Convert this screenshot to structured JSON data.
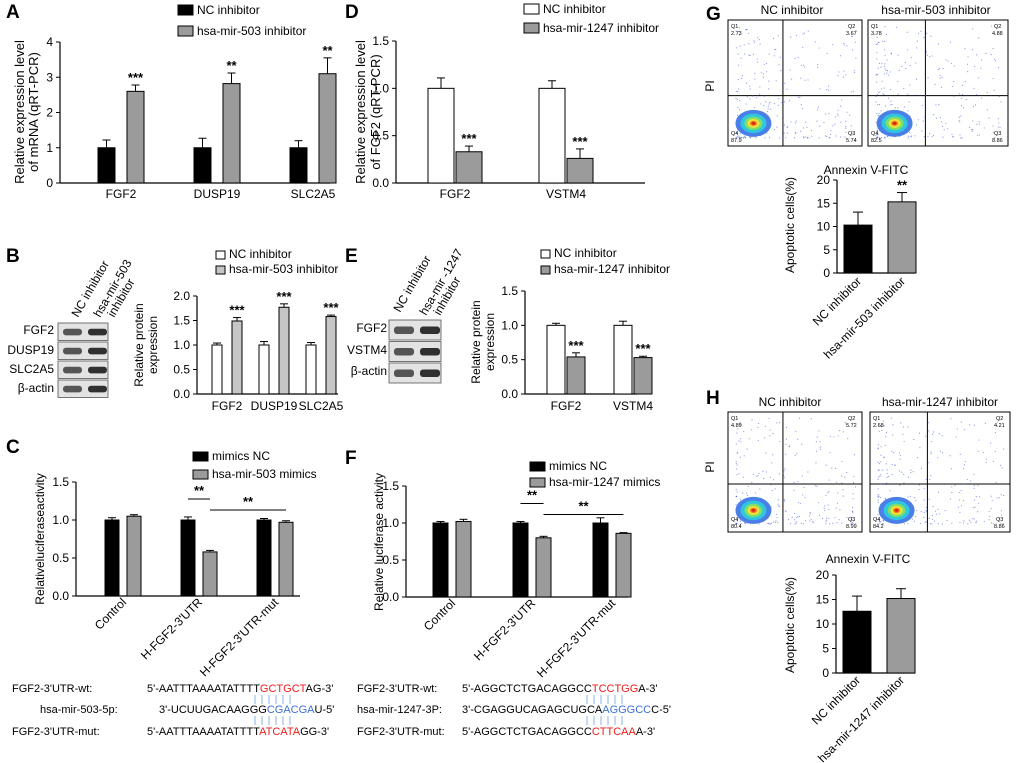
{
  "panel_letters": {
    "A": "A",
    "B": "B",
    "C": "C",
    "D": "D",
    "E": "E",
    "F": "F",
    "G": "G",
    "H": "H"
  },
  "colors": {
    "nc": "#000000",
    "treat": "#9b9b9b",
    "treat_light": "#c6c6c6",
    "open": "#ffffff",
    "red": "#ee1c1c",
    "blue": "#3f6fd8",
    "blot_dark": "#262626",
    "blot_bg": "#e3e3e3"
  },
  "sig": {
    "three": "***",
    "two": "**"
  },
  "chart_data": [
    {
      "id": "A",
      "type": "bar",
      "legend": [
        "NC inhibitor",
        "hsa-mir-503 inhibitor"
      ],
      "ylabel_lines": [
        "Relative expression level",
        "of mRNA (qRT-PCR)"
      ],
      "ylim": [
        0,
        4
      ],
      "ytick_labels": [
        "0",
        "1",
        "2",
        "3",
        "4"
      ],
      "categories": [
        "FGF2",
        "DUSP19",
        "SLC2A5"
      ],
      "series": [
        {
          "name": "NC inhibitor",
          "values": [
            1.0,
            1.0,
            1.0
          ],
          "errors": [
            0.22,
            0.27,
            0.2
          ]
        },
        {
          "name": "hsa-mir-503 inhibitor",
          "values": [
            2.6,
            2.82,
            3.1
          ],
          "errors": [
            0.18,
            0.3,
            0.45
          ]
        }
      ],
      "annotations": [
        "***",
        "**",
        "**"
      ]
    },
    {
      "id": "B",
      "type": "bar",
      "legend": [
        "NC inhibitor",
        "hsa-mir-503 inhibitor"
      ],
      "ylabel_lines": [
        "Relative protein",
        "expression"
      ],
      "ylim": [
        0,
        2.0
      ],
      "ytick_labels": [
        "0.0",
        "0.5",
        "1.0",
        "1.5",
        "2.0"
      ],
      "categories": [
        "FGF2",
        "DUSP19",
        "SLC2A5"
      ],
      "series": [
        {
          "name": "NC inhibitor",
          "values": [
            1.0,
            1.0,
            1.0
          ],
          "errors": [
            0.04,
            0.07,
            0.05
          ]
        },
        {
          "name": "hsa-mir-503 inhibitor",
          "values": [
            1.49,
            1.77,
            1.58
          ],
          "errors": [
            0.07,
            0.07,
            0.03
          ]
        }
      ],
      "annotations": [
        "***",
        "***",
        "***"
      ]
    },
    {
      "id": "C",
      "type": "bar",
      "legend": [
        "mimics NC",
        "hsa-mir-503 mimics"
      ],
      "ylabel_lines": [
        "Relativeluciferaseactivity"
      ],
      "ylim": [
        0,
        1.5
      ],
      "ytick_labels": [
        "0.0",
        "0.5",
        "1.0",
        "1.5"
      ],
      "categories": [
        "Control",
        "H-FGF2-3'UTR",
        "H-FGF2-3'UTR-mut"
      ],
      "series": [
        {
          "name": "mimics NC",
          "values": [
            1.0,
            1.0,
            1.0
          ],
          "errors": [
            0.03,
            0.04,
            0.02
          ]
        },
        {
          "name": "hsa-mir-503 mimics",
          "values": [
            1.05,
            0.58,
            0.97
          ],
          "errors": [
            0.02,
            0.02,
            0.02
          ]
        }
      ],
      "brackets": [
        "**",
        "**"
      ]
    },
    {
      "id": "D",
      "type": "bar",
      "legend": [
        "NC inhibitor",
        "hsa-mir-1247 inhibitor"
      ],
      "ylabel_lines": [
        "Relative expression level",
        "of FGF2 (qRT-PCR)"
      ],
      "ylim": [
        0,
        1.5
      ],
      "ytick_labels": [
        "0.0",
        "0.5",
        "1.0",
        "1.5"
      ],
      "categories": [
        "FGF2",
        "VSTM4"
      ],
      "series": [
        {
          "name": "NC inhibitor",
          "values": [
            1.0,
            1.0
          ],
          "errors": [
            0.11,
            0.08
          ]
        },
        {
          "name": "hsa-mir-1247 inhibitor",
          "values": [
            0.33,
            0.26
          ],
          "errors": [
            0.06,
            0.1
          ]
        }
      ],
      "annotations": [
        "***",
        "***"
      ]
    },
    {
      "id": "E",
      "type": "bar",
      "legend": [
        "NC inhibitor",
        "hsa-mir-1247 inhibitor"
      ],
      "ylabel_lines": [
        "Relative protein",
        "expression"
      ],
      "ylim": [
        0,
        1.5
      ],
      "ytick_labels": [
        "0.0",
        "0.5",
        "1.0",
        "1.5"
      ],
      "categories": [
        "FGF2",
        "VSTM4"
      ],
      "series": [
        {
          "name": "NC inhibitor",
          "values": [
            1.0,
            1.0
          ],
          "errors": [
            0.03,
            0.06
          ]
        },
        {
          "name": "hsa-mir-1247 inhibitor",
          "values": [
            0.54,
            0.53
          ],
          "errors": [
            0.06,
            0.02
          ]
        }
      ],
      "annotations": [
        "***",
        "***"
      ]
    },
    {
      "id": "F",
      "type": "bar",
      "legend": [
        "mimics NC",
        "hsa-mir-1247 mimics"
      ],
      "ylabel_lines": [
        "Relative luciferase activity"
      ],
      "ylim": [
        0,
        1.5
      ],
      "ytick_labels": [
        "0.0",
        "0.5",
        "1.0",
        "1.5"
      ],
      "categories": [
        "Control",
        "H-FGF2-3'UTR",
        "H-FGF2-3'UTR-mut"
      ],
      "series": [
        {
          "name": "mimics NC",
          "values": [
            1.0,
            1.0,
            1.0
          ],
          "errors": [
            0.02,
            0.02,
            0.07
          ]
        },
        {
          "name": "hsa-mir-1247 mimics",
          "values": [
            1.02,
            0.8,
            0.86
          ],
          "errors": [
            0.03,
            0.02,
            0.01
          ]
        }
      ],
      "brackets": [
        "**",
        "**"
      ]
    },
    {
      "id": "G",
      "type": "bar",
      "ylabel_lines": [
        "Apoptotic cells(%)"
      ],
      "ylim": [
        0,
        20
      ],
      "ytick_labels": [
        "0",
        "5",
        "10",
        "15",
        "20"
      ],
      "categories": [
        "NC inhibitor",
        "hsa-mir-503 inhibitor"
      ],
      "values": [
        10.3,
        15.3
      ],
      "errors": [
        2.8,
        2.0
      ],
      "annotations": [
        "",
        "**"
      ]
    },
    {
      "id": "H",
      "type": "bar",
      "ylabel_lines": [
        "Apoptotic cells(%)"
      ],
      "ylim": [
        0,
        20
      ],
      "ytick_labels": [
        "0",
        "5",
        "10",
        "15",
        "20"
      ],
      "categories": [
        "NC inhibitor",
        "hsa-mir-1247 inhibitor"
      ],
      "values": [
        12.6,
        15.2
      ],
      "errors": [
        3.1,
        2.0
      ],
      "annotations": [
        "",
        ""
      ]
    }
  ],
  "blots": {
    "B": {
      "lanes": [
        "NC inhibitor",
        "hsa-mir-503",
        "inhibitor"
      ],
      "rows": [
        "FGF2",
        "DUSP19",
        "SLC2A5",
        "β-actin"
      ]
    },
    "E": {
      "lanes": [
        "NC inhibitor",
        "hsa-mir -1247",
        "inhibitor"
      ],
      "rows": [
        "FGF2",
        "VSTM4",
        "β-actin"
      ]
    }
  },
  "flow": {
    "G": {
      "titles": [
        "NC inhibitor",
        "hsa-mir-503 inhibitor"
      ],
      "ylabel": "PI",
      "xlabel": "Annexin V-FITC",
      "quadrants": [
        {
          "Q1": "Q1",
          "Q2": "Q2",
          "Q3": "Q3",
          "Q4": "Q4",
          "v1": "2.73",
          "v2": "3.67",
          "v3": "5.74",
          "v4": "87.9"
        },
        {
          "Q1": "Q1",
          "Q2": "Q2",
          "Q3": "Q3",
          "Q4": "Q4",
          "v1": "3.78",
          "v2": "4.88",
          "v3": "8.86",
          "v4": "82.5"
        }
      ]
    },
    "H": {
      "titles": [
        "NC inhibitor",
        "hsa-mir-1247 inhibitor"
      ],
      "ylabel": "PI",
      "xlabel": "Annexin V-FITC",
      "quadrants": [
        {
          "Q1": "Q1",
          "Q2": "Q2",
          "Q3": "Q3",
          "Q4": "Q4",
          "v1": "4.89",
          "v2": "5.72",
          "v3": "8.99",
          "v4": "80.4"
        },
        {
          "Q1": "Q1",
          "Q2": "Q2",
          "Q3": "Q3",
          "Q4": "Q4",
          "v1": "2.68",
          "v2": "4.21",
          "v3": "8.86",
          "v4": "84.2"
        }
      ]
    }
  },
  "sequences": {
    "C": [
      {
        "label": "FGF2-3'UTR-wt:",
        "parts": [
          "5'-AATTTAAAATATTTT",
          "GCTGCT",
          "AG-3'"
        ]
      },
      {
        "label": "hsa-mir-503-5p:",
        "parts": [
          "3'-UCUUGACAAGGG",
          "CGACGA",
          "U-5'"
        ]
      },
      {
        "label": "FGF2-3'UTR-mut:",
        "parts": [
          "5'-AATTTAAAATATTTT",
          "ATCATA",
          "GG-3'"
        ]
      }
    ],
    "F": [
      {
        "label": "FGF2-3'UTR-wt:",
        "parts": [
          "5'-AGGCTCTGACAGGCC",
          "TCCTGG",
          "A-3'"
        ]
      },
      {
        "label": "hsa-mir-1247-3P:",
        "parts": [
          "3'-CGAGGUCAGAGCUGCA",
          "AGGGCC",
          "C-5'"
        ]
      },
      {
        "label": "FGF2-3'UTR-mut:",
        "parts": [
          "5'-AGGCTCTGACAGGCC",
          "CTTCAA",
          "A-3'"
        ]
      }
    ]
  }
}
